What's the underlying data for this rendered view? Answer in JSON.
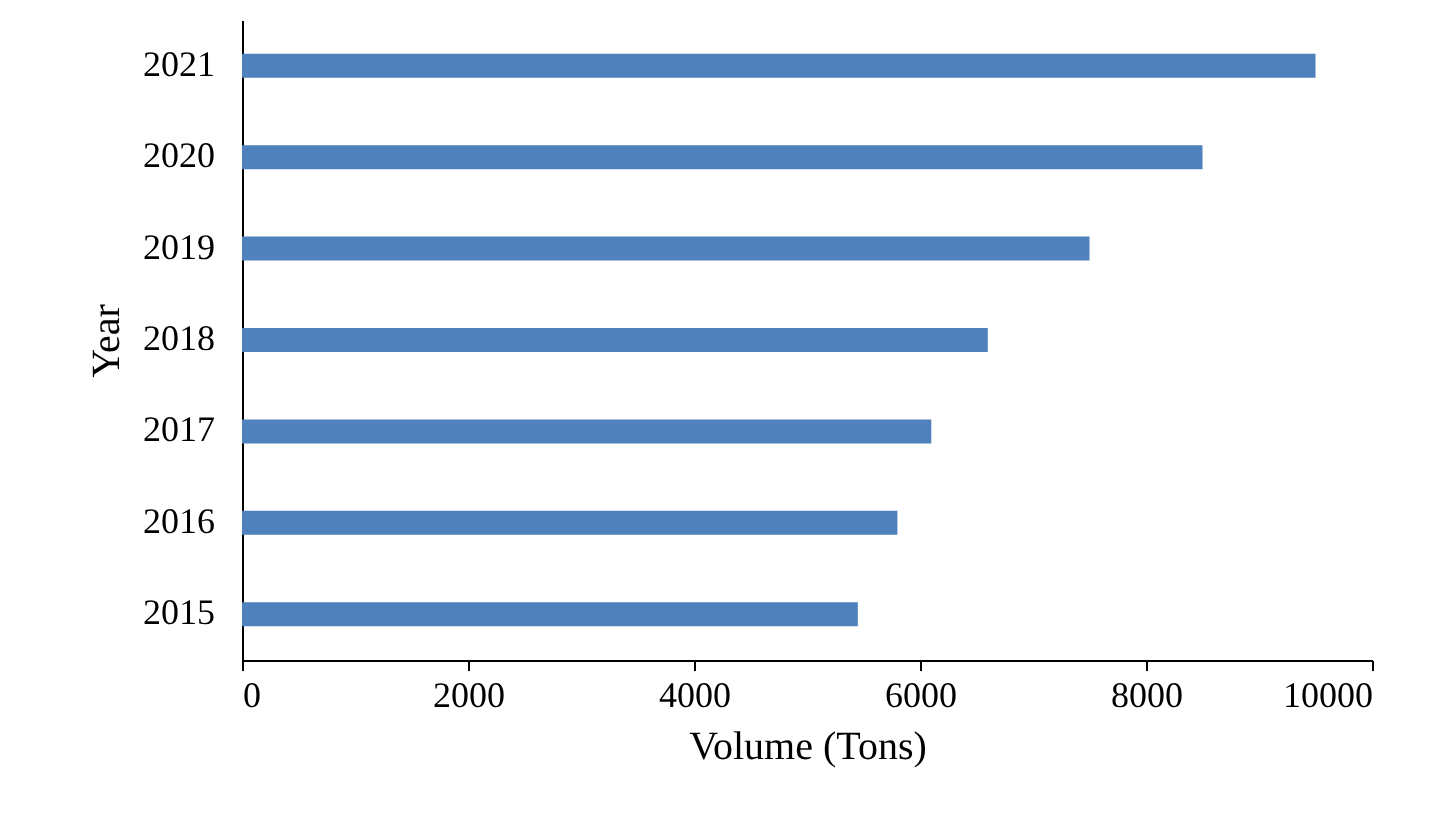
{
  "chart_data": {
    "type": "bar",
    "orientation": "horizontal",
    "xlabel": "Volume (Tons)",
    "ylabel": "Year",
    "categories": [
      "2021",
      "2020",
      "2019",
      "2018",
      "2017",
      "2016",
      "2015"
    ],
    "values": [
      9500,
      8500,
      7500,
      6600,
      6100,
      5800,
      5450
    ],
    "color": "#4f81bd",
    "xlim": [
      0,
      10000
    ],
    "xticks": [
      0,
      2000,
      4000,
      6000,
      8000,
      10000
    ],
    "grid": false
  }
}
